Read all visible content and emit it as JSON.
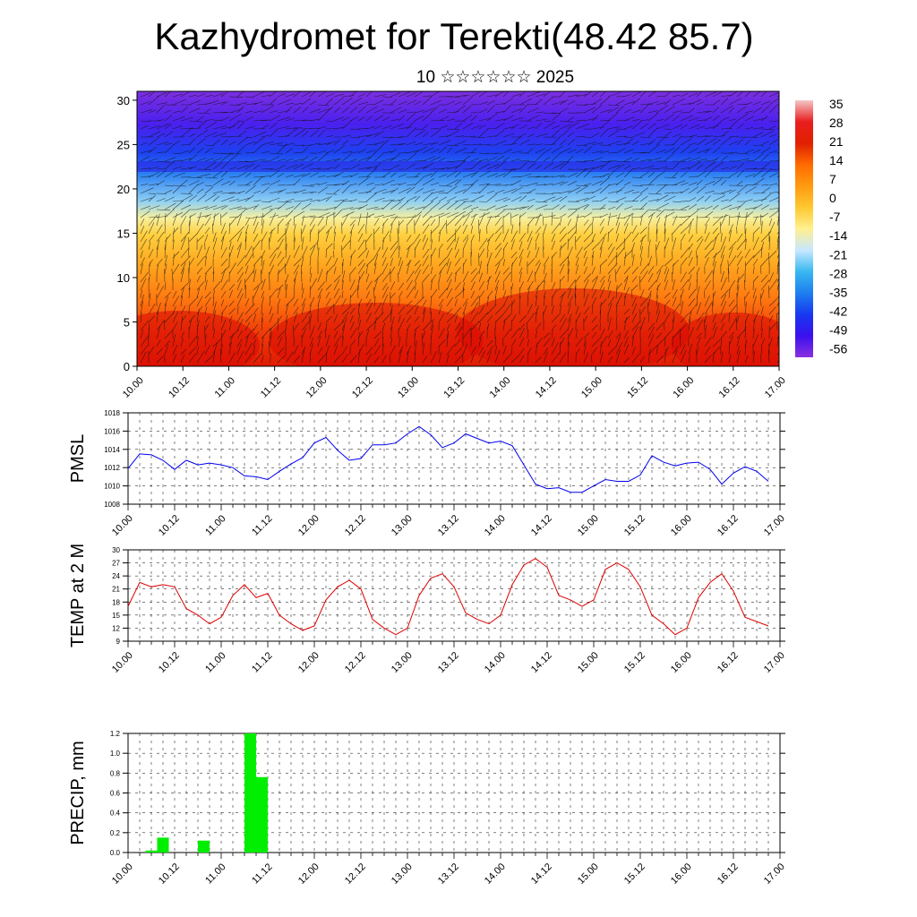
{
  "title": "Kazhydromet for Terekti(48.42 85.7)",
  "subtitle": "10 ☆☆☆☆☆☆ 2025",
  "colors": {
    "pmsl_line": "#0000ee",
    "temp_line": "#dd0000",
    "precip_bar": "#00ee00",
    "grid": "#000000"
  },
  "chart_data": [
    {
      "type": "heatmap",
      "panel": "cross-section",
      "ylim": [
        0,
        31
      ],
      "yticks": [
        "0",
        "5",
        "10",
        "15",
        "20",
        "25",
        "30"
      ],
      "xticks": [
        "10.00",
        "10.12",
        "11.00",
        "11.12",
        "12.00",
        "12.12",
        "13.00",
        "13.12",
        "14.00",
        "14.12",
        "15.00",
        "15.12",
        "16.00",
        "16.12",
        "17.00"
      ],
      "colorbar": {
        "labels": [
          "35",
          "28",
          "21",
          "14",
          "7",
          "0",
          "-7",
          "-14",
          "-21",
          "-28",
          "-35",
          "-42",
          "-49",
          "-56"
        ],
        "stops": [
          "#f4c6c6",
          "#e91e1e",
          "#e02000",
          "#ff6a00",
          "#ff9a10",
          "#ffc830",
          "#fff090",
          "#c8e8ff",
          "#38b8f0",
          "#1e7ef0",
          "#1838f0",
          "#3a10ee",
          "#8a30e0"
        ]
      },
      "overlay": "wind vectors"
    },
    {
      "type": "line",
      "panel": "pmsl",
      "ylabel": "PMSL",
      "ylim": [
        1008,
        1018
      ],
      "yticks": [
        "1008",
        "1010",
        "1012",
        "1014",
        "1016",
        "1018"
      ],
      "xticks": [
        "10.00",
        "10.12",
        "11.00",
        "11.12",
        "12.00",
        "12.12",
        "13.00",
        "13.12",
        "14.00",
        "14.12",
        "15.00",
        "15.12",
        "16.00",
        "16.12",
        "17.00"
      ],
      "xlim": [
        0,
        56
      ],
      "x": [
        0,
        1,
        2,
        3,
        4,
        5,
        6,
        7,
        8,
        9,
        10,
        11,
        12,
        13,
        14,
        15,
        16,
        17,
        18,
        19,
        20,
        21,
        22,
        23,
        24,
        25,
        26,
        27,
        28,
        29,
        30,
        31,
        32,
        33,
        34,
        35,
        36,
        37,
        38,
        39,
        40,
        41,
        42,
        43,
        44,
        45,
        46,
        47,
        48,
        49,
        50,
        51,
        52,
        53,
        54,
        55
      ],
      "values": [
        1011.9,
        1013.5,
        1013.4,
        1012.8,
        1011.8,
        1012.8,
        1012.3,
        1012.5,
        1012.3,
        1012.0,
        1011.1,
        1011.0,
        1010.7,
        1011.6,
        1012.4,
        1013.1,
        1014.7,
        1015.3,
        1013.9,
        1012.8,
        1013.0,
        1014.5,
        1014.5,
        1014.7,
        1015.7,
        1016.5,
        1015.6,
        1014.2,
        1014.7,
        1015.7,
        1015.2,
        1014.7,
        1014.9,
        1014.4,
        1012.3,
        1010.2,
        1009.7,
        1009.8,
        1009.3,
        1009.3,
        1010.0,
        1010.7,
        1010.5,
        1010.5,
        1011.2,
        1013.3,
        1012.6,
        1012.2,
        1012.5,
        1012.6,
        1011.8,
        1010.2,
        1011.4,
        1012.1,
        1011.6,
        1010.5
      ]
    },
    {
      "type": "line",
      "panel": "temp",
      "ylabel": "TEMP at 2 M",
      "ylim": [
        9,
        30
      ],
      "yticks": [
        "9",
        "12",
        "15",
        "18",
        "21",
        "24",
        "27",
        "30"
      ],
      "xticks": [
        "10.00",
        "10.12",
        "11.00",
        "11.12",
        "12.00",
        "12.12",
        "13.00",
        "13.12",
        "14.00",
        "14.12",
        "15.00",
        "15.12",
        "16.00",
        "16.12",
        "17.00"
      ],
      "xlim": [
        0,
        56
      ],
      "x": [
        0,
        1,
        2,
        3,
        4,
        5,
        6,
        7,
        8,
        9,
        10,
        11,
        12,
        13,
        14,
        15,
        16,
        17,
        18,
        19,
        20,
        21,
        22,
        23,
        24,
        25,
        26,
        27,
        28,
        29,
        30,
        31,
        32,
        33,
        34,
        35,
        36,
        37,
        38,
        39,
        40,
        41,
        42,
        43,
        44,
        45,
        46,
        47,
        48,
        49,
        50,
        51,
        52,
        53,
        54,
        55
      ],
      "values": [
        17.0,
        22.5,
        21.5,
        22.0,
        21.5,
        16.5,
        15.0,
        13.0,
        14.5,
        19.5,
        22.0,
        19.0,
        20.0,
        15.0,
        13.0,
        11.5,
        12.5,
        18.5,
        21.5,
        23.0,
        21.0,
        14.0,
        12.0,
        10.5,
        12.0,
        19.5,
        23.5,
        24.5,
        21.5,
        15.5,
        14.0,
        13.0,
        15.0,
        22.0,
        26.5,
        28.0,
        26.0,
        19.5,
        18.5,
        17.0,
        18.5,
        25.5,
        27.0,
        25.5,
        21.5,
        15.0,
        13.0,
        10.5,
        12.0,
        19.0,
        22.5,
        24.5,
        20.5,
        14.5,
        13.5,
        12.5
      ]
    },
    {
      "type": "bar",
      "panel": "precip",
      "ylabel": "PRECIP, mm",
      "ylim": [
        0,
        1.2
      ],
      "yticks": [
        "0.0",
        "0.2",
        "0.4",
        "0.6",
        "0.8",
        "1.0",
        "1.2"
      ],
      "xticks": [
        "10.00",
        "10.12",
        "11.00",
        "11.12",
        "12.00",
        "12.12",
        "13.00",
        "13.12",
        "14.00",
        "14.12",
        "15.00",
        "15.12",
        "16.00",
        "16.12",
        "17.00"
      ],
      "xlim": [
        0,
        56
      ],
      "bars": [
        {
          "x": 2,
          "value": 0.02
        },
        {
          "x": 3,
          "value": 0.15
        },
        {
          "x": 6.5,
          "value": 0.12
        },
        {
          "x": 10.5,
          "value": 1.2
        },
        {
          "x": 11.5,
          "value": 0.76
        }
      ]
    }
  ]
}
